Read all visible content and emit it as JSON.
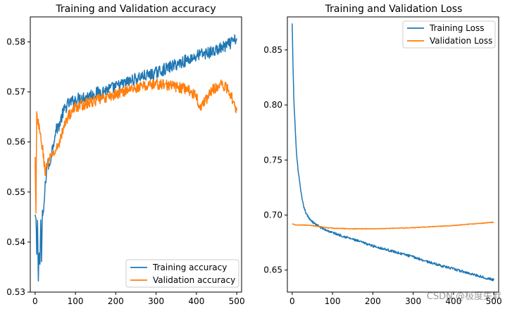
{
  "chart_data": [
    {
      "type": "line",
      "title": "Training and Validation accuracy",
      "xlim": [
        -12,
        512
      ],
      "ylim": [
        0.53,
        0.585
      ],
      "xticks": [
        0,
        100,
        200,
        300,
        400,
        500
      ],
      "xtick_labels": [
        "0",
        "100",
        "200",
        "300",
        "400",
        "500"
      ],
      "yticks": [
        0.53,
        0.54,
        0.55,
        0.56,
        0.57,
        0.58
      ],
      "ytick_labels": [
        "0.53",
        "0.54",
        "0.55",
        "0.56",
        "0.57",
        "0.58"
      ],
      "legend_position": "lower-right",
      "series": [
        {
          "name": "Training accuracy",
          "color": "#1f77b4",
          "x": [
            0,
            2,
            4,
            6,
            8,
            10,
            12,
            14,
            16,
            18,
            20,
            25,
            30,
            35,
            40,
            50,
            60,
            70,
            80,
            90,
            100,
            120,
            140,
            160,
            180,
            200,
            230,
            260,
            290,
            320,
            350,
            380,
            410,
            440,
            470,
            500
          ],
          "y": [
            0.5455,
            0.5445,
            0.5375,
            0.5435,
            0.5325,
            0.5385,
            0.5355,
            0.5445,
            0.5365,
            0.5455,
            0.545,
            0.551,
            0.556,
            0.555,
            0.5575,
            0.562,
            0.5635,
            0.566,
            0.5675,
            0.568,
            0.5685,
            0.569,
            0.5695,
            0.57,
            0.5705,
            0.571,
            0.572,
            0.573,
            0.5735,
            0.5745,
            0.5755,
            0.5765,
            0.5775,
            0.578,
            0.579,
            0.5805
          ]
        },
        {
          "name": "Validation accuracy",
          "color": "#ff7f0e",
          "x": [
            0,
            2,
            4,
            6,
            8,
            10,
            12,
            15,
            18,
            20,
            25,
            30,
            35,
            40,
            50,
            60,
            70,
            80,
            90,
            100,
            120,
            140,
            160,
            180,
            200,
            230,
            260,
            290,
            320,
            350,
            380,
            400,
            410,
            420,
            440,
            460,
            480,
            500
          ],
          "y": [
            0.557,
            0.5455,
            0.5655,
            0.5635,
            0.564,
            0.5625,
            0.5615,
            0.5605,
            0.559,
            0.5575,
            0.554,
            0.5555,
            0.556,
            0.5575,
            0.558,
            0.56,
            0.5625,
            0.565,
            0.566,
            0.567,
            0.5675,
            0.568,
            0.5685,
            0.569,
            0.5695,
            0.5705,
            0.571,
            0.5715,
            0.5715,
            0.571,
            0.5705,
            0.569,
            0.567,
            0.568,
            0.5705,
            0.5715,
            0.5705,
            0.5665
          ]
        }
      ]
    },
    {
      "type": "line",
      "title": "Training and Validation Loss",
      "xlim": [
        -12,
        512
      ],
      "ylim": [
        0.63,
        0.88
      ],
      "xticks": [
        0,
        100,
        200,
        300,
        400,
        500
      ],
      "xtick_labels": [
        "0",
        "100",
        "200",
        "300",
        "400",
        "500"
      ],
      "yticks": [
        0.65,
        0.7,
        0.75,
        0.8,
        0.85
      ],
      "ytick_labels": [
        "0.65",
        "0.70",
        "0.75",
        "0.80",
        "0.85"
      ],
      "legend_position": "top-right",
      "series": [
        {
          "name": "Training Loss",
          "color": "#1f77b4",
          "x": [
            0,
            2,
            4,
            6,
            8,
            10,
            12,
            15,
            20,
            25,
            30,
            35,
            40,
            50,
            60,
            70,
            80,
            100,
            150,
            200,
            250,
            300,
            350,
            400,
            450,
            500
          ],
          "y": [
            0.874,
            0.835,
            0.805,
            0.79,
            0.775,
            0.76,
            0.75,
            0.74,
            0.725,
            0.713,
            0.706,
            0.701,
            0.698,
            0.694,
            0.691,
            0.689,
            0.687,
            0.684,
            0.678,
            0.672,
            0.667,
            0.662,
            0.656,
            0.651,
            0.646,
            0.641
          ]
        },
        {
          "name": "Validation Loss",
          "color": "#ff7f0e",
          "x": [
            0,
            10,
            25,
            50,
            75,
            100,
            150,
            200,
            250,
            300,
            350,
            400,
            450,
            500
          ],
          "y": [
            0.692,
            0.691,
            0.691,
            0.6905,
            0.689,
            0.688,
            0.6875,
            0.6875,
            0.688,
            0.6885,
            0.6895,
            0.6905,
            0.692,
            0.6935
          ]
        }
      ]
    }
  ],
  "watermark": "CSDN @极度失默"
}
